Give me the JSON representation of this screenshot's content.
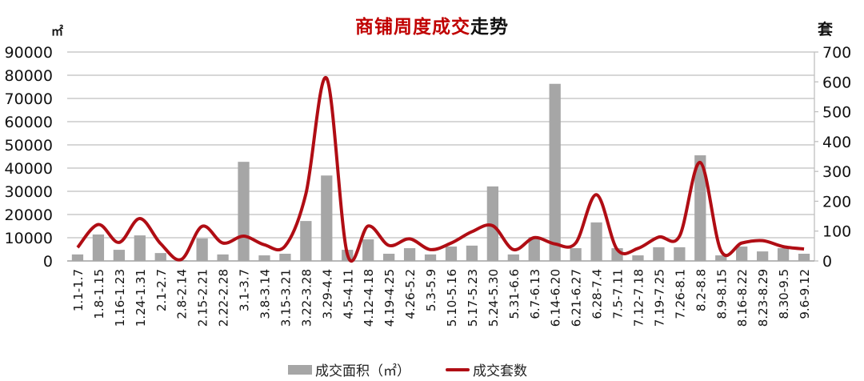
{
  "title": {
    "red_part": "商铺周度成交",
    "black_part": "走势"
  },
  "left_unit": "㎡",
  "right_unit": "套",
  "legend": {
    "bar_label": "成交面积（㎡）",
    "line_label": "成交套数"
  },
  "colors": {
    "bar": "#a6a6a6",
    "line": "#b00d14",
    "title_red": "#c00000",
    "grid": "#bfbfbf"
  },
  "chart_data": {
    "type": "bar+line",
    "title": "商铺周度成交走势",
    "xlabel": "",
    "ylabel_left": "㎡",
    "ylabel_right": "套",
    "ylim_left": [
      0,
      90000
    ],
    "ylim_right": [
      0,
      700
    ],
    "yticks_left": [
      0,
      10000,
      20000,
      30000,
      40000,
      50000,
      60000,
      70000,
      80000,
      90000
    ],
    "yticks_right": [
      0,
      100,
      200,
      300,
      400,
      500,
      600,
      700
    ],
    "grid": true,
    "legend_position": "bottom",
    "categories": [
      "1.1-1.7",
      "1.8-1.15",
      "1.16-1.23",
      "1.24-1.31",
      "2.1-2.7",
      "2.8-2.14",
      "2.15-2.21",
      "2.22-2.28",
      "3.1-3.7",
      "3.8-3.14",
      "3.15-3.21",
      "3.22-3.28",
      "3.29-4.4",
      "4.5-4.11",
      "4.12-4.18",
      "4.19-4.25",
      "4.26-5.2",
      "5.3-5.9",
      "5.10-5.16",
      "5.17-5.23",
      "5.24-5.30",
      "5.31-6.6",
      "6.7-6.13",
      "6.14-6.20",
      "6.21-6.27",
      "6.28-7.4",
      "7.5-7.11",
      "7.12-7.18",
      "7.19-7.25",
      "7.26-8.1",
      "8.2-8.8",
      "8.9-8.15",
      "8.16-8.22",
      "8.23-8.29",
      "8.30-9.5",
      "9.6-9.12"
    ],
    "series": [
      {
        "name": "成交面积（㎡）",
        "type": "bar",
        "axis": "left",
        "values": [
          2800,
          11400,
          4800,
          11000,
          3400,
          300,
          9700,
          2800,
          42700,
          2400,
          3100,
          17200,
          36800,
          4800,
          9300,
          3100,
          5500,
          2800,
          6200,
          6600,
          32100,
          2800,
          10300,
          76300,
          5500,
          16600,
          5500,
          2400,
          5900,
          5900,
          45500,
          2400,
          6200,
          4100,
          5500,
          3100
        ]
      },
      {
        "name": "成交套数",
        "type": "line",
        "axis": "right",
        "smooth": true,
        "values": [
          45,
          122,
          62,
          142,
          58,
          5,
          116,
          60,
          83,
          54,
          50,
          225,
          612,
          22,
          117,
          52,
          74,
          38,
          60,
          98,
          118,
          38,
          78,
          57,
          60,
          222,
          38,
          42,
          80,
          83,
          330,
          34,
          60,
          68,
          48,
          40
        ]
      }
    ]
  }
}
